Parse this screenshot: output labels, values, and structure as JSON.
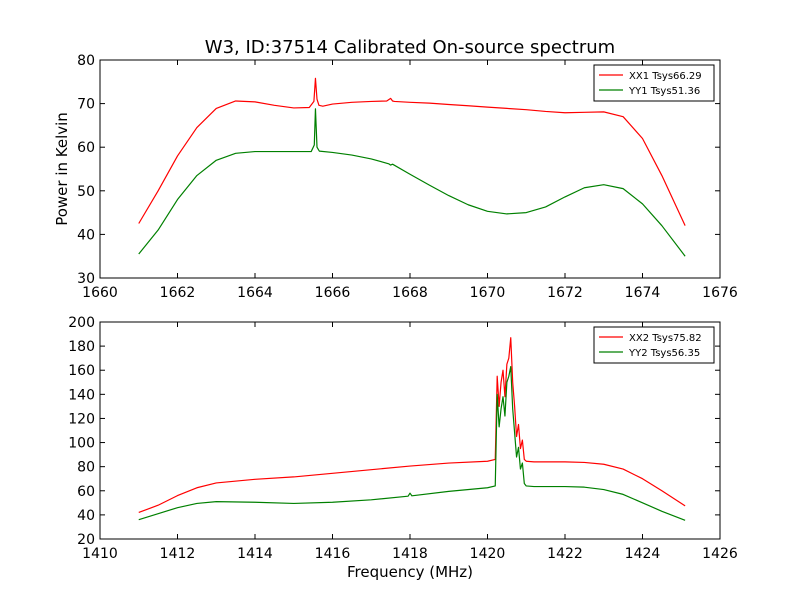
{
  "figure": {
    "title": "W3, ID:37514 Calibrated On-source spectrum",
    "ylabel": "Power in Kelvin",
    "xlabel": "Frequency (MHz)"
  },
  "chart_data": [
    {
      "type": "line",
      "xlim": [
        1660,
        1676
      ],
      "ylim": [
        30,
        80
      ],
      "xticks": [
        "1660",
        "1662",
        "1664",
        "1666",
        "1668",
        "1670",
        "1672",
        "1674",
        "1676"
      ],
      "yticks": [
        "30",
        "40",
        "50",
        "60",
        "70",
        "80"
      ],
      "grid": false,
      "legend_position": "top-right",
      "series": [
        {
          "name": "XX1 Tsys66.29",
          "color": "#ff0000",
          "x": [
            1661.0,
            1661.5,
            1662.0,
            1662.5,
            1663.0,
            1663.5,
            1664.0,
            1664.5,
            1665.0,
            1665.4,
            1665.52,
            1665.56,
            1665.6,
            1665.65,
            1665.75,
            1666.0,
            1666.5,
            1667.0,
            1667.4,
            1667.5,
            1667.55,
            1667.6,
            1668.0,
            1668.5,
            1669.0,
            1669.5,
            1670.0,
            1670.5,
            1671.0,
            1671.5,
            1672.0,
            1672.5,
            1673.0,
            1673.5,
            1674.0,
            1674.5,
            1675.1
          ],
          "y": [
            42.5,
            50.0,
            58.0,
            64.5,
            68.9,
            70.6,
            70.4,
            69.6,
            69.0,
            69.1,
            70.5,
            75.8,
            71.0,
            69.6,
            69.4,
            69.9,
            70.3,
            70.5,
            70.6,
            71.2,
            70.6,
            70.5,
            70.3,
            70.1,
            69.8,
            69.5,
            69.2,
            68.9,
            68.6,
            68.2,
            67.9,
            68.0,
            68.1,
            67.0,
            62.0,
            53.5,
            42.0
          ]
        },
        {
          "name": "YY1 Tsys51.36",
          "color": "#008000",
          "x": [
            1661.0,
            1661.5,
            1662.0,
            1662.5,
            1663.0,
            1663.5,
            1664.0,
            1664.5,
            1665.0,
            1665.45,
            1665.53,
            1665.56,
            1665.6,
            1665.66,
            1666.0,
            1666.5,
            1667.0,
            1667.45,
            1667.5,
            1667.55,
            1668.0,
            1668.5,
            1669.0,
            1669.5,
            1670.0,
            1670.5,
            1671.0,
            1671.5,
            1672.0,
            1672.5,
            1673.0,
            1673.5,
            1674.0,
            1674.5,
            1675.1
          ],
          "y": [
            35.5,
            41.0,
            48.0,
            53.5,
            57.0,
            58.6,
            59.0,
            59.0,
            59.0,
            59.0,
            60.5,
            68.8,
            60.0,
            59.1,
            58.8,
            58.2,
            57.3,
            56.2,
            55.9,
            56.1,
            53.8,
            51.3,
            48.9,
            46.8,
            45.3,
            44.7,
            45.0,
            46.3,
            48.6,
            50.7,
            51.4,
            50.5,
            47.0,
            42.0,
            35.0
          ]
        }
      ]
    },
    {
      "type": "line",
      "xlim": [
        1410,
        1426
      ],
      "ylim": [
        20,
        200
      ],
      "xticks": [
        "1410",
        "1412",
        "1414",
        "1416",
        "1418",
        "1420",
        "1422",
        "1424",
        "1426"
      ],
      "yticks": [
        "20",
        "40",
        "60",
        "80",
        "100",
        "120",
        "140",
        "160",
        "180",
        "200"
      ],
      "grid": false,
      "legend_position": "top-right",
      "series": [
        {
          "name": "XX2 Tsys75.82",
          "color": "#ff0000",
          "x": [
            1411.0,
            1411.5,
            1412.0,
            1412.5,
            1413.0,
            1414.0,
            1415.0,
            1416.0,
            1417.0,
            1418.0,
            1419.0,
            1420.0,
            1420.2,
            1420.25,
            1420.3,
            1420.35,
            1420.4,
            1420.45,
            1420.5,
            1420.55,
            1420.6,
            1420.65,
            1420.7,
            1420.75,
            1420.8,
            1420.85,
            1420.9,
            1420.95,
            1421.0,
            1421.2,
            1421.5,
            1422.0,
            1422.5,
            1423.0,
            1423.5,
            1424.0,
            1424.5,
            1425.1
          ],
          "y": [
            42.0,
            48.0,
            56.0,
            62.5,
            66.5,
            69.5,
            71.5,
            74.5,
            77.5,
            80.5,
            83.0,
            84.5,
            86.0,
            155.0,
            130.0,
            150.0,
            160.0,
            138.0,
            165.0,
            170.0,
            187.0,
            150.0,
            130.0,
            105.0,
            115.0,
            95.0,
            102.0,
            86.0,
            84.5,
            84.0,
            84.0,
            84.0,
            83.5,
            82.0,
            78.0,
            70.0,
            60.0,
            47.5
          ]
        },
        {
          "name": "YY2 Tsys56.35",
          "color": "#008000",
          "x": [
            1411.0,
            1411.5,
            1412.0,
            1412.5,
            1413.0,
            1414.0,
            1415.0,
            1416.0,
            1417.0,
            1417.95,
            1418.0,
            1418.05,
            1419.0,
            1420.0,
            1420.2,
            1420.25,
            1420.3,
            1420.35,
            1420.4,
            1420.45,
            1420.5,
            1420.55,
            1420.6,
            1420.65,
            1420.7,
            1420.75,
            1420.8,
            1420.85,
            1420.9,
            1420.95,
            1421.0,
            1421.2,
            1421.5,
            1422.0,
            1422.5,
            1423.0,
            1423.5,
            1424.0,
            1424.5,
            1425.1
          ],
          "y": [
            36.0,
            41.0,
            46.0,
            49.5,
            51.0,
            50.5,
            49.5,
            50.5,
            52.5,
            55.5,
            58.0,
            55.8,
            59.5,
            62.5,
            64.0,
            140.0,
            113.0,
            128.0,
            138.0,
            122.0,
            150.0,
            155.0,
            163.0,
            128.0,
            108.0,
            88.0,
            96.0,
            78.0,
            83.0,
            66.0,
            64.0,
            63.5,
            63.5,
            63.5,
            63.0,
            61.0,
            57.0,
            50.0,
            43.0,
            35.5
          ]
        }
      ]
    }
  ]
}
